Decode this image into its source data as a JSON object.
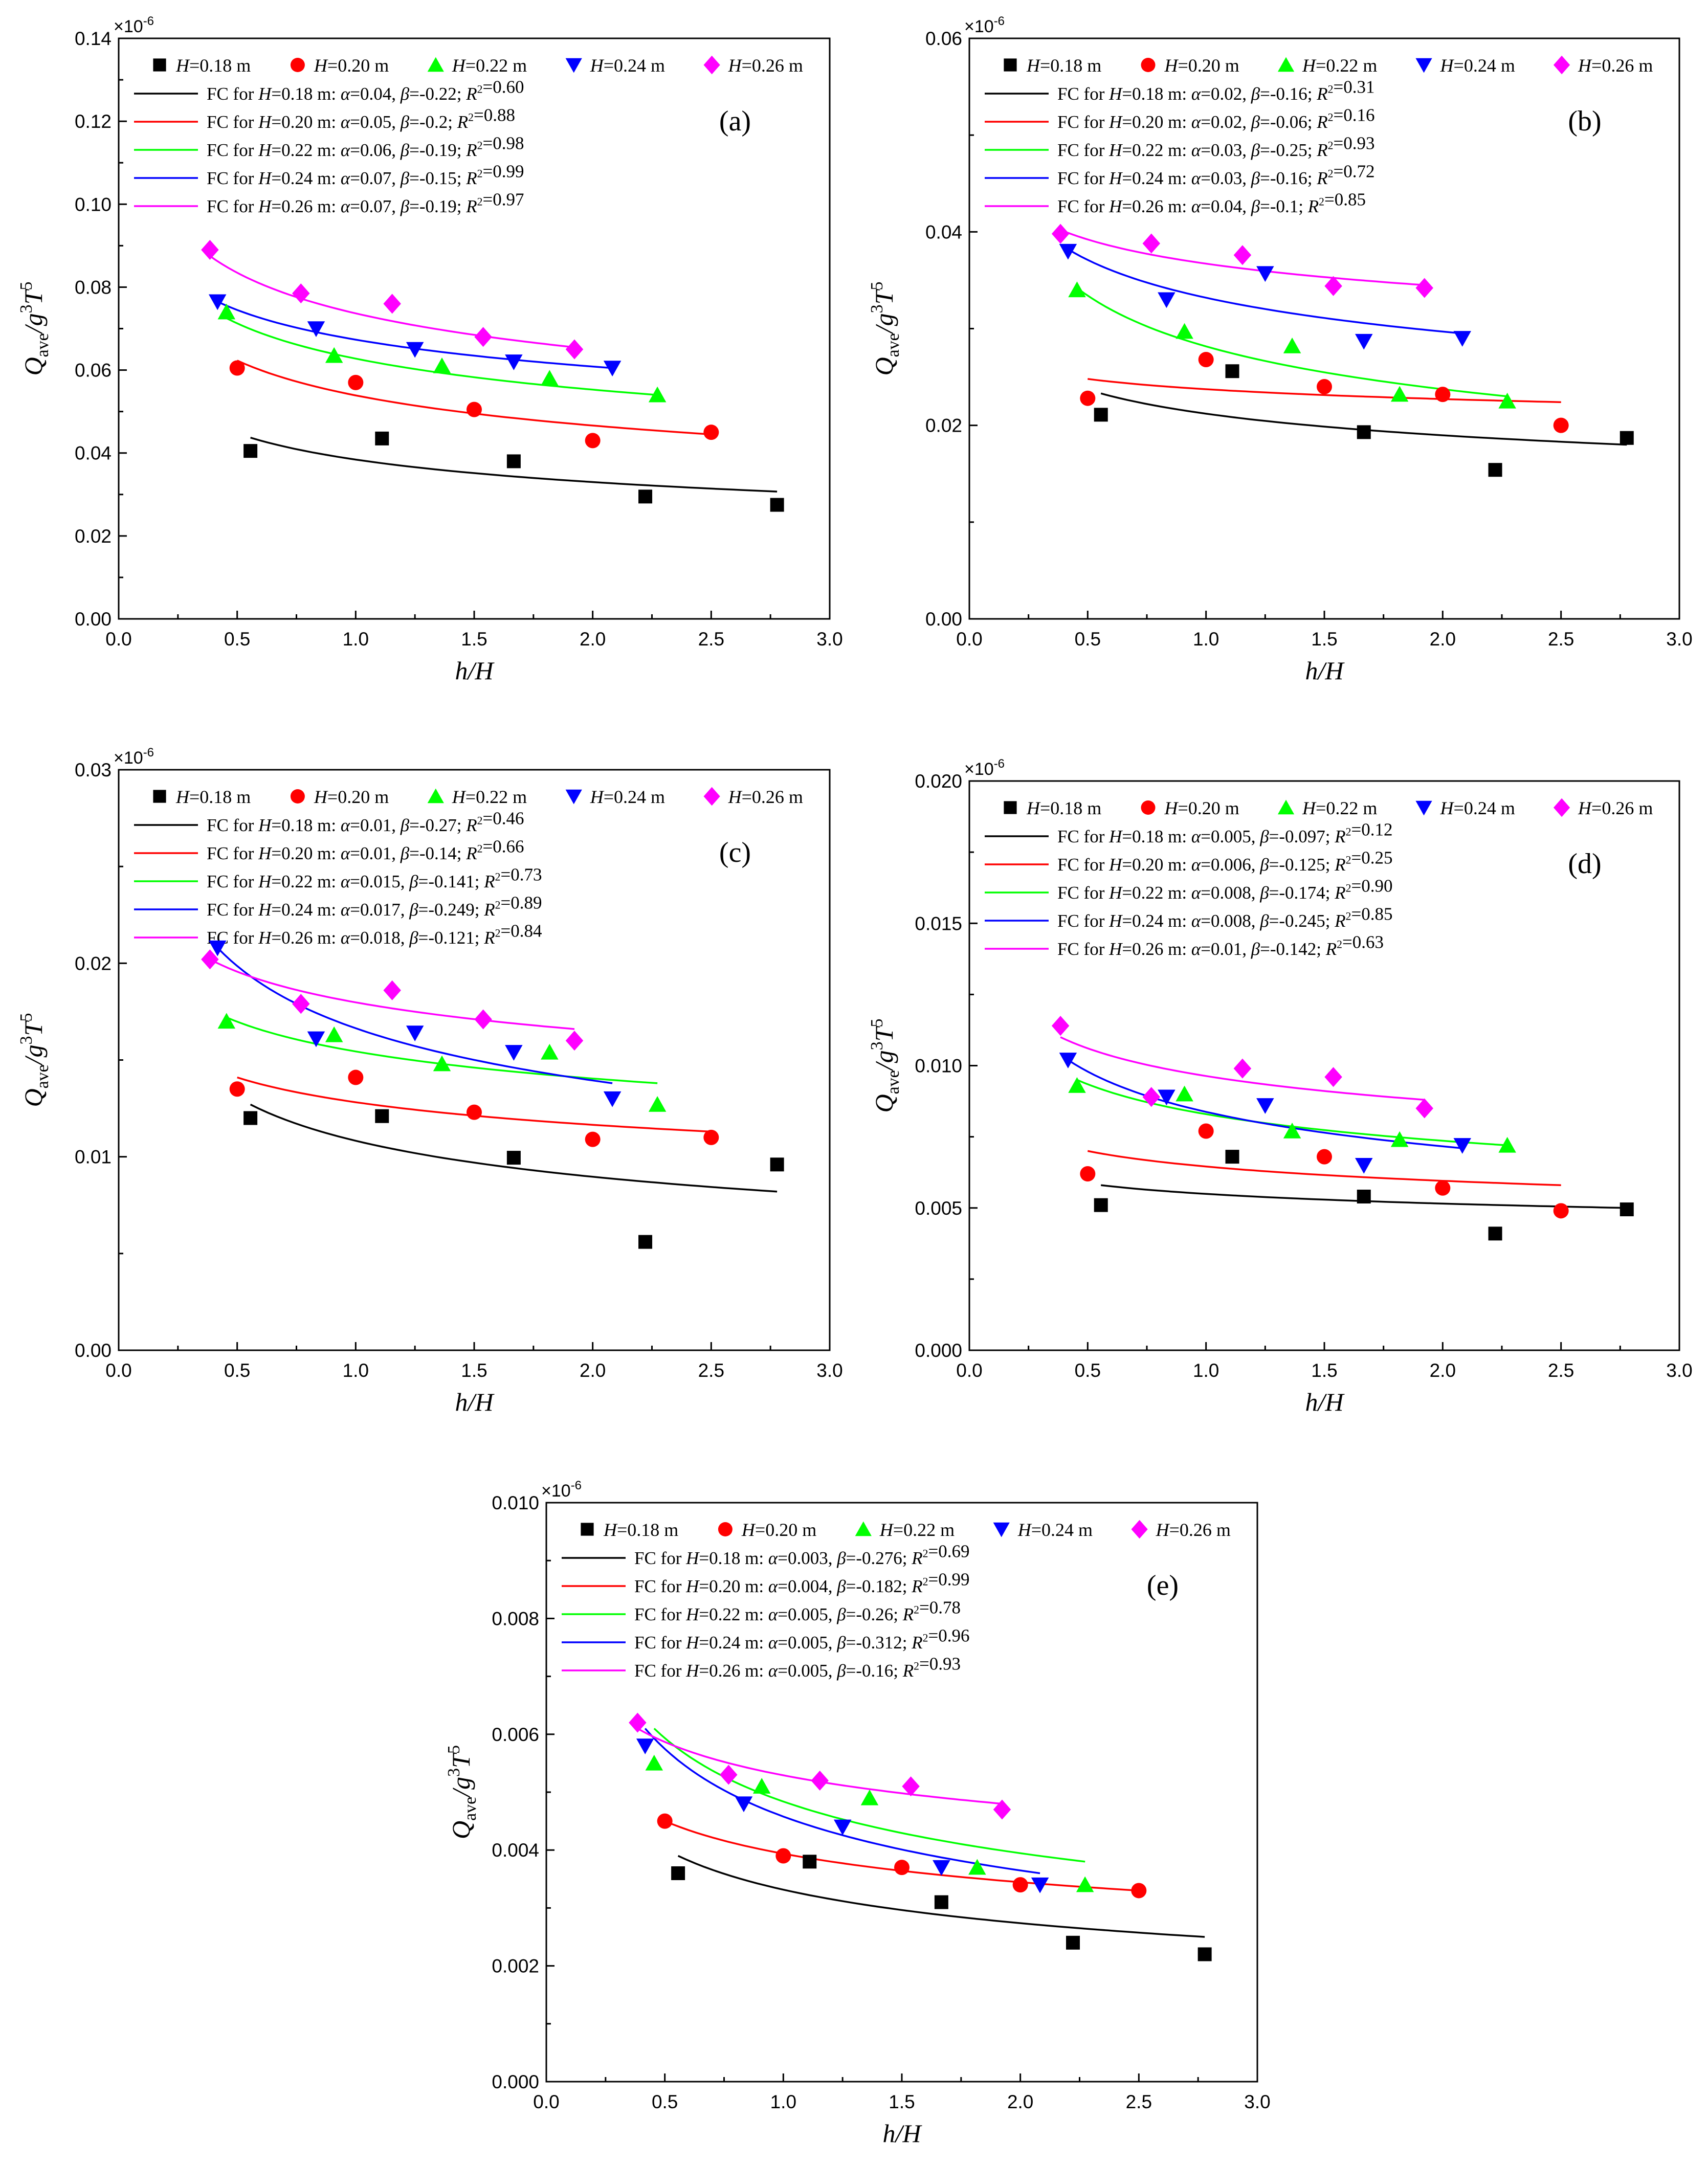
{
  "figure": {
    "colors": {
      "H018": "#000000",
      "H020": "#ff0000",
      "H022": "#00ff00",
      "H024": "#0000ff",
      "H026": "#ff00ff"
    },
    "marker_shapes": [
      "square",
      "circle",
      "triangle-up",
      "triangle-down",
      "diamond"
    ]
  },
  "chart_data": [
    {
      "id": "a",
      "type": "scatter",
      "panel_label": "(a)",
      "xlabel": "h/H",
      "ylabel": "Qave/g3T5",
      "y_multiplier": "×10-6",
      "xlim": [
        0.0,
        3.0
      ],
      "ylim": [
        0.0,
        0.14
      ],
      "xticks": [
        "0.0",
        "0.5",
        "1.0",
        "1.5",
        "2.0",
        "2.5",
        "3.0"
      ],
      "yticks": [
        "0.00",
        "0.02",
        "0.04",
        "0.06",
        "0.08",
        "0.10",
        "0.12",
        "0.14"
      ],
      "series": [
        {
          "name": "H=0.18 m",
          "x": [
            0.556,
            1.111,
            1.667,
            2.222,
            2.778
          ],
          "y": [
            0.0405,
            0.0435,
            0.038,
            0.0295,
            0.0275
          ]
        },
        {
          "name": "H=0.20 m",
          "x": [
            0.5,
            1.0,
            1.5,
            2.0,
            2.5
          ],
          "y": [
            0.0605,
            0.057,
            0.0505,
            0.043,
            0.045
          ]
        },
        {
          "name": "H=0.22 m",
          "x": [
            0.455,
            0.909,
            1.364,
            1.818,
            2.273
          ],
          "y": [
            0.074,
            0.0635,
            0.061,
            0.058,
            0.054
          ]
        },
        {
          "name": "H=0.24 m",
          "x": [
            0.417,
            0.833,
            1.25,
            1.667,
            2.083
          ],
          "y": [
            0.0765,
            0.07,
            0.065,
            0.062,
            0.0605
          ]
        },
        {
          "name": "H=0.26 m",
          "x": [
            0.385,
            0.769,
            1.154,
            1.538,
            1.923
          ],
          "y": [
            0.089,
            0.0785,
            0.076,
            0.068,
            0.065
          ]
        }
      ],
      "fits": [
        {
          "label": "FC for H=0.18 m: α=0.04, β=-0.22; R2=0.60",
          "x": [
            0.556,
            2.778
          ],
          "y": [
            0.0437,
            0.0307
          ]
        },
        {
          "label": "FC for H=0.20 m: α=0.05, β=-0.2; R2=0.88",
          "x": [
            0.5,
            2.5
          ],
          "y": [
            0.0623,
            0.0445
          ]
        },
        {
          "label": "FC for H=0.22 m: α=0.06, β=-0.19; R2=0.98",
          "x": [
            0.455,
            2.273
          ],
          "y": [
            0.0725,
            0.054
          ]
        },
        {
          "label": "FC for H=0.24 m: α=0.07, β=-0.15; R2=0.99",
          "x": [
            0.417,
            2.083
          ],
          "y": [
            0.0765,
            0.0605
          ]
        },
        {
          "label": "FC for H=0.26 m: α=0.07, β=-0.19; R2=0.97",
          "x": [
            0.385,
            1.923
          ],
          "y": [
            0.0875,
            0.0655
          ]
        }
      ]
    },
    {
      "id": "b",
      "type": "scatter",
      "panel_label": "(b)",
      "xlabel": "h/H",
      "ylabel": "Qave/g3T5",
      "y_multiplier": "×10-6",
      "xlim": [
        0.0,
        3.0
      ],
      "ylim": [
        0.0,
        0.06
      ],
      "xticks": [
        "0.0",
        "0.5",
        "1.0",
        "1.5",
        "2.0",
        "2.5",
        "3.0"
      ],
      "yticks": [
        "0.00",
        "0.02",
        "0.04",
        "0.06"
      ],
      "series": [
        {
          "name": "H=0.18 m",
          "x": [
            0.556,
            1.111,
            1.667,
            2.222,
            2.778
          ],
          "y": [
            0.0211,
            0.0256,
            0.0193,
            0.0154,
            0.0187
          ]
        },
        {
          "name": "H=0.20 m",
          "x": [
            0.5,
            1.0,
            1.5,
            2.0,
            2.5
          ],
          "y": [
            0.0228,
            0.0268,
            0.024,
            0.0232,
            0.02
          ]
        },
        {
          "name": "H=0.22 m",
          "x": [
            0.455,
            0.909,
            1.364,
            1.818,
            2.273
          ],
          "y": [
            0.034,
            0.0297,
            0.0282,
            0.0232,
            0.0225
          ]
        },
        {
          "name": "H=0.24 m",
          "x": [
            0.417,
            0.833,
            1.25,
            1.667,
            2.083
          ],
          "y": [
            0.038,
            0.033,
            0.0357,
            0.0287,
            0.029
          ]
        },
        {
          "name": "H=0.26 m",
          "x": [
            0.385,
            0.769,
            1.154,
            1.538,
            1.923
          ],
          "y": [
            0.0398,
            0.0388,
            0.0376,
            0.0344,
            0.0342
          ]
        }
      ],
      "fits": [
        {
          "label": "FC for H=0.18 m: α=0.02, β=-0.16; R2=0.31",
          "x": [
            0.556,
            2.778
          ],
          "y": [
            0.0233,
            0.018
          ]
        },
        {
          "label": "FC for H=0.20 m: α=0.02, β=-0.06; R2=0.16",
          "x": [
            0.5,
            2.5
          ],
          "y": [
            0.0248,
            0.0224
          ]
        },
        {
          "label": "FC for H=0.22 m: α=0.03, β=-0.25; R2=0.93",
          "x": [
            0.455,
            2.273
          ],
          "y": [
            0.0342,
            0.023
          ]
        },
        {
          "label": "FC for H=0.24 m: α=0.03, β=-0.16; R2=0.72",
          "x": [
            0.417,
            2.083
          ],
          "y": [
            0.0382,
            0.0295
          ]
        },
        {
          "label": "FC for H=0.26 m: α=0.04, β=-0.1; R2=0.85",
          "x": [
            0.385,
            1.923
          ],
          "y": [
            0.0402,
            0.0345
          ]
        }
      ]
    },
    {
      "id": "c",
      "type": "scatter",
      "panel_label": "(c)",
      "xlabel": "h/H",
      "ylabel": "Qave/g3T5",
      "y_multiplier": "×10-6",
      "xlim": [
        0.0,
        3.0
      ],
      "ylim": [
        0.0,
        0.03
      ],
      "xticks": [
        "0.0",
        "0.5",
        "1.0",
        "1.5",
        "2.0",
        "2.5",
        "3.0"
      ],
      "yticks": [
        "0.00",
        "0.01",
        "0.02",
        "0.03"
      ],
      "series": [
        {
          "name": "H=0.18 m",
          "x": [
            0.556,
            1.111,
            1.667,
            2.222,
            2.778
          ],
          "y": [
            0.012,
            0.0121,
            0.00995,
            0.0056,
            0.0096
          ]
        },
        {
          "name": "H=0.20 m",
          "x": [
            0.5,
            1.0,
            1.5,
            2.0,
            2.5
          ],
          "y": [
            0.0135,
            0.0141,
            0.0123,
            0.0109,
            0.011
          ]
        },
        {
          "name": "H=0.22 m",
          "x": [
            0.455,
            0.909,
            1.364,
            1.818,
            2.273
          ],
          "y": [
            0.017,
            0.0163,
            0.0148,
            0.0154,
            0.0127
          ]
        },
        {
          "name": "H=0.24 m",
          "x": [
            0.417,
            0.833,
            1.25,
            1.667,
            2.083
          ],
          "y": [
            0.0208,
            0.0161,
            0.0164,
            0.0154,
            0.013
          ]
        },
        {
          "name": "H=0.26 m",
          "x": [
            0.385,
            0.769,
            1.154,
            1.538,
            1.923
          ],
          "y": [
            0.0202,
            0.0179,
            0.0186,
            0.0171,
            0.016
          ]
        }
      ],
      "fits": [
        {
          "label": "FC for H=0.18 m: α=0.01, β=-0.27; R2=0.46",
          "x": [
            0.556,
            2.778
          ],
          "y": [
            0.0127,
            0.0082
          ]
        },
        {
          "label": "FC for H=0.20 m: α=0.01, β=-0.14; R2=0.66",
          "x": [
            0.5,
            2.5
          ],
          "y": [
            0.0141,
            0.0113
          ]
        },
        {
          "label": "FC for H=0.22 m: α=0.015, β=-0.141; R2=0.73",
          "x": [
            0.455,
            2.273
          ],
          "y": [
            0.0172,
            0.0138
          ]
        },
        {
          "label": "FC for H=0.24 m: α=0.017, β=-0.249; R2=0.89",
          "x": [
            0.417,
            2.083
          ],
          "y": [
            0.0208,
            0.0138
          ]
        },
        {
          "label": "FC for H=0.26 m: α=0.018, β=-0.121; R2=0.84",
          "x": [
            0.385,
            1.923
          ],
          "y": [
            0.0202,
            0.0166
          ]
        }
      ]
    },
    {
      "id": "d",
      "type": "scatter",
      "panel_label": "(d)",
      "xlabel": "h/H",
      "ylabel": "Qave/g3T5",
      "y_multiplier": "×10-6",
      "xlim": [
        0.0,
        3.0
      ],
      "ylim": [
        0.0,
        0.02
      ],
      "xticks": [
        "0.0",
        "0.5",
        "1.0",
        "1.5",
        "2.0",
        "2.5",
        "3.0"
      ],
      "yticks": [
        "0.000",
        "0.005",
        "0.010",
        "0.015",
        "0.020"
      ],
      "series": [
        {
          "name": "H=0.18 m",
          "x": [
            0.556,
            1.111,
            1.667,
            2.222,
            2.778
          ],
          "y": [
            0.0051,
            0.0068,
            0.0054,
            0.0041,
            0.00495
          ]
        },
        {
          "name": "H=0.20 m",
          "x": [
            0.5,
            1.0,
            1.5,
            2.0,
            2.5
          ],
          "y": [
            0.0062,
            0.0077,
            0.0068,
            0.0057,
            0.0049
          ]
        },
        {
          "name": "H=0.22 m",
          "x": [
            0.455,
            0.909,
            1.364,
            1.818,
            2.273
          ],
          "y": [
            0.0093,
            0.009,
            0.0077,
            0.0074,
            0.0072
          ]
        },
        {
          "name": "H=0.24 m",
          "x": [
            0.417,
            0.833,
            1.25,
            1.667,
            2.083
          ],
          "y": [
            0.0102,
            0.0089,
            0.0086,
            0.0065,
            0.0072
          ]
        },
        {
          "name": "H=0.26 m",
          "x": [
            0.385,
            0.769,
            1.154,
            1.538,
            1.923
          ],
          "y": [
            0.0114,
            0.0089,
            0.0099,
            0.0096,
            0.0085
          ]
        }
      ],
      "fits": [
        {
          "label": "FC for H=0.18 m: α=0.005, β=-0.097; R2=0.12",
          "x": [
            0.556,
            2.778
          ],
          "y": [
            0.0058,
            0.005
          ]
        },
        {
          "label": "FC for H=0.20 m: α=0.006, β=-0.125; R2=0.25",
          "x": [
            0.5,
            2.5
          ],
          "y": [
            0.007,
            0.0058
          ]
        },
        {
          "label": "FC for H=0.22 m: α=0.008, β=-0.174; R2=0.90",
          "x": [
            0.455,
            2.273
          ],
          "y": [
            0.0095,
            0.0072
          ]
        },
        {
          "label": "FC for H=0.24 m: α=0.008, β=-0.245; R2=0.85",
          "x": [
            0.417,
            2.083
          ],
          "y": [
            0.0102,
            0.0071
          ]
        },
        {
          "label": "FC for H=0.26 m: α=0.01, β=-0.142; R2=0.63",
          "x": [
            0.385,
            1.923
          ],
          "y": [
            0.011,
            0.0088
          ]
        }
      ]
    },
    {
      "id": "e",
      "type": "scatter",
      "panel_label": "(e)",
      "xlabel": "h/H",
      "ylabel": "Qave/g3T5",
      "y_multiplier": "×10-6",
      "xlim": [
        0.0,
        3.0
      ],
      "ylim": [
        0.0,
        0.01
      ],
      "xticks": [
        "0.0",
        "0.5",
        "1.0",
        "1.5",
        "2.0",
        "2.5",
        "3.0"
      ],
      "yticks": [
        "0.000",
        "0.002",
        "0.004",
        "0.006",
        "0.008",
        "0.010"
      ],
      "series": [
        {
          "name": "H=0.18 m",
          "x": [
            0.556,
            1.111,
            1.667,
            2.222,
            2.778
          ],
          "y": [
            0.0036,
            0.0038,
            0.0031,
            0.0024,
            0.0022
          ]
        },
        {
          "name": "H=0.20 m",
          "x": [
            0.5,
            1.0,
            1.5,
            2.0,
            2.5
          ],
          "y": [
            0.0045,
            0.0039,
            0.0037,
            0.0034,
            0.0033
          ]
        },
        {
          "name": "H=0.22 m",
          "x": [
            0.455,
            0.909,
            1.364,
            1.818,
            2.273
          ],
          "y": [
            0.0055,
            0.0051,
            0.0049,
            0.0037,
            0.0034
          ]
        },
        {
          "name": "H=0.24 m",
          "x": [
            0.417,
            0.833,
            1.25,
            1.667,
            2.083
          ],
          "y": [
            0.0058,
            0.0048,
            0.0044,
            0.0037,
            0.0034
          ]
        },
        {
          "name": "H=0.26 m",
          "x": [
            0.385,
            0.769,
            1.154,
            1.538,
            1.923
          ],
          "y": [
            0.0062,
            0.0053,
            0.0052,
            0.0051,
            0.0047
          ]
        }
      ],
      "fits": [
        {
          "label": "FC for H=0.18 m: α=0.003, β=-0.276; R2=0.69",
          "x": [
            0.556,
            2.778
          ],
          "y": [
            0.0039,
            0.0025
          ]
        },
        {
          "label": "FC for H=0.20 m: α=0.004, β=-0.182; R2=0.99",
          "x": [
            0.5,
            2.5
          ],
          "y": [
            0.0045,
            0.0033
          ]
        },
        {
          "label": "FC for H=0.22 m: α=0.005, β=-0.26; R2=0.78",
          "x": [
            0.455,
            2.273
          ],
          "y": [
            0.0061,
            0.0038
          ]
        },
        {
          "label": "FC for H=0.24 m: α=0.005, β=-0.312; R2=0.96",
          "x": [
            0.417,
            2.083
          ],
          "y": [
            0.0061,
            0.0036
          ]
        },
        {
          "label": "FC for H=0.26 m: α=0.005, β=-0.16; R2=0.93",
          "x": [
            0.385,
            1.923
          ],
          "y": [
            0.0061,
            0.0048
          ]
        }
      ]
    }
  ]
}
